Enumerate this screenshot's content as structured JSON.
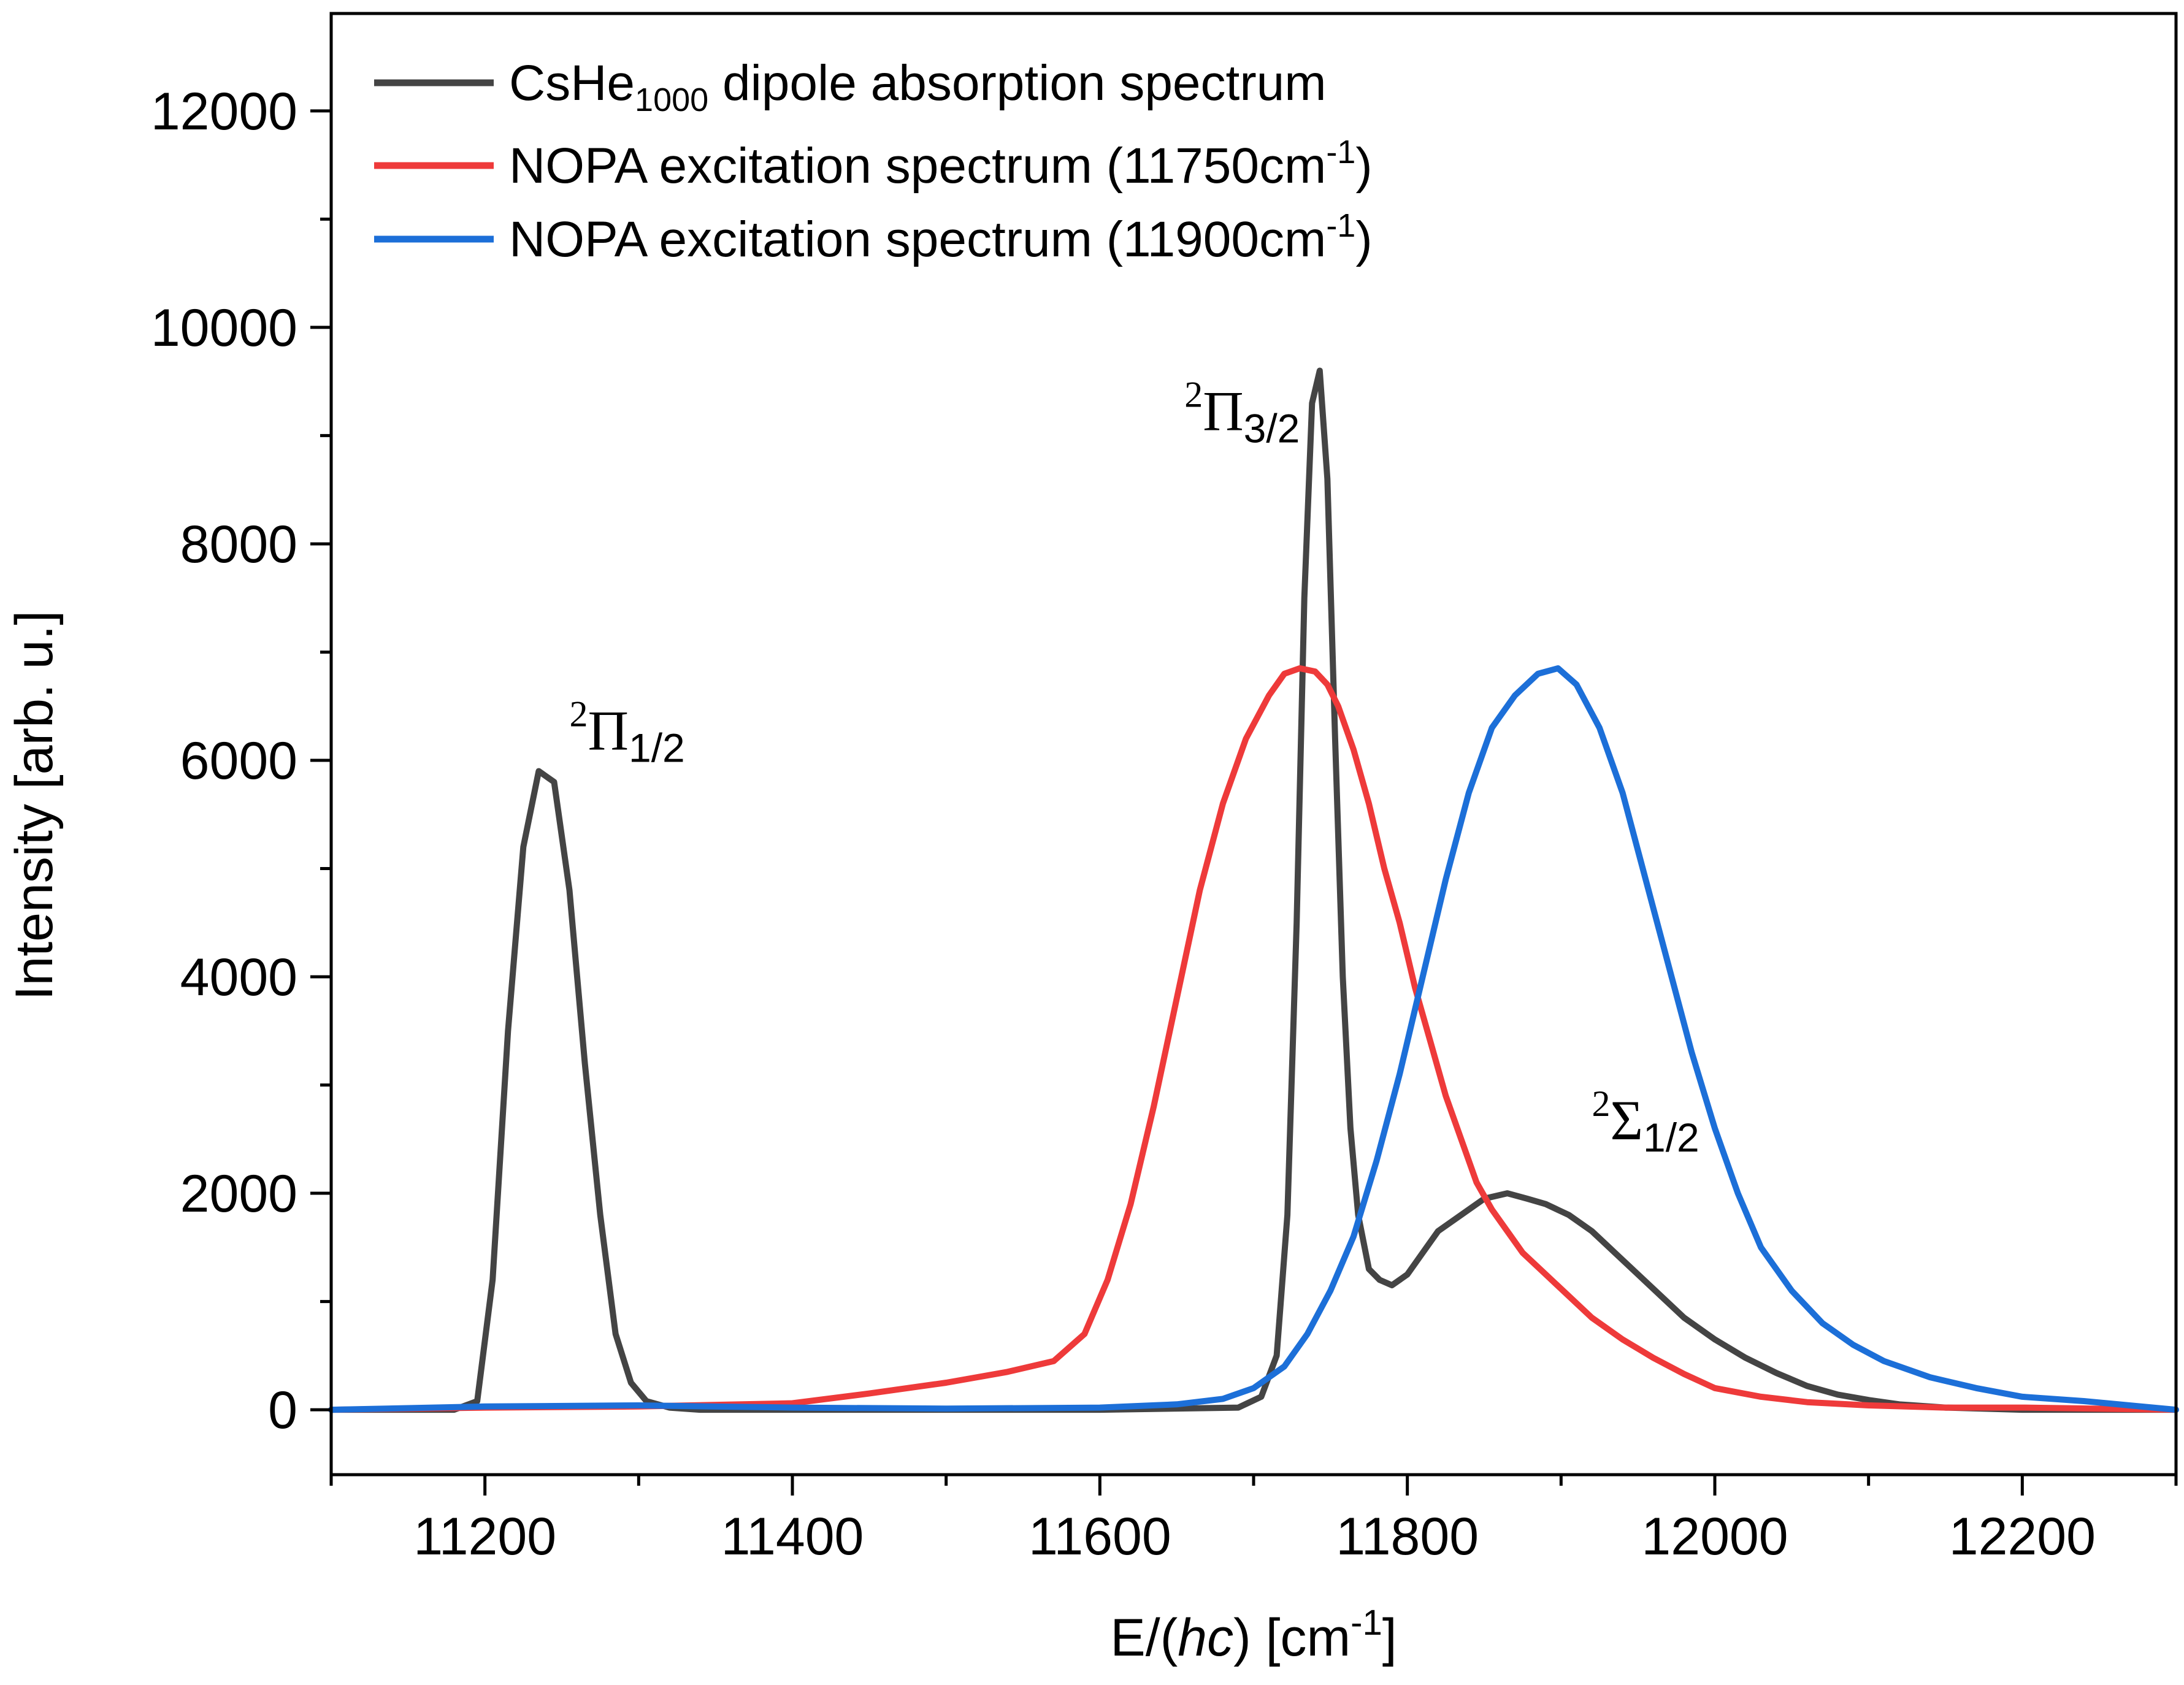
{
  "chart_data": {
    "type": "line",
    "xlabel_main": "E/(",
    "xlabel_italic": "hc",
    "xlabel_unit": ") [cm",
    "xlabel_exp": "-1",
    "xlabel_close": "]",
    "ylabel": "Intensity [arb. u.]",
    "xlim": [
      11100,
      12300
    ],
    "ylim": [
      -600,
      12900
    ],
    "xticks": [
      11200,
      11400,
      11600,
      11800,
      12000,
      12200
    ],
    "yticks": [
      0,
      2000,
      4000,
      6000,
      8000,
      10000,
      12000
    ],
    "legend_position": "top-left",
    "series": [
      {
        "name": "CsHe1000 dipole absorption spectrum",
        "legend_main": "CsHe",
        "legend_sub": "1000",
        "legend_rest": " dipole absorption spectrum",
        "color": "#444444",
        "x": [
          11100,
          11180,
          11195,
          11205,
          11215,
          11225,
          11235,
          11245,
          11255,
          11265,
          11275,
          11285,
          11295,
          11305,
          11320,
          11340,
          11380,
          11600,
          11690,
          11705,
          11715,
          11722,
          11728,
          11733,
          11738,
          11743,
          11748,
          11753,
          11758,
          11763,
          11768,
          11775,
          11782,
          11790,
          11800,
          11810,
          11820,
          11835,
          11850,
          11865,
          11878,
          11890,
          11905,
          11920,
          11935,
          11950,
          11965,
          11980,
          12000,
          12020,
          12040,
          12060,
          12080,
          12100,
          12120,
          12150,
          12200,
          12300
        ],
        "y": [
          0,
          0,
          80,
          1200,
          3500,
          5200,
          5900,
          5800,
          4800,
          3200,
          1800,
          700,
          250,
          80,
          20,
          0,
          0,
          0,
          20,
          120,
          500,
          1800,
          4500,
          7500,
          9300,
          9600,
          8600,
          6200,
          4000,
          2600,
          1800,
          1300,
          1200,
          1150,
          1250,
          1450,
          1650,
          1800,
          1950,
          2000,
          1950,
          1900,
          1800,
          1650,
          1450,
          1250,
          1050,
          850,
          650,
          480,
          340,
          220,
          140,
          90,
          50,
          20,
          0,
          0
        ]
      },
      {
        "name": "NOPA excitation spectrum (11750cm-1)",
        "legend_main": "NOPA excitation spectrum (11750cm",
        "legend_sup": "-1",
        "legend_close": ")",
        "color": "#ee3a3a",
        "x": [
          11100,
          11200,
          11300,
          11400,
          11450,
          11500,
          11540,
          11570,
          11590,
          11605,
          11620,
          11635,
          11650,
          11665,
          11680,
          11695,
          11710,
          11720,
          11730,
          11740,
          11748,
          11755,
          11765,
          11775,
          11785,
          11795,
          11805,
          11815,
          11825,
          11835,
          11845,
          11855,
          11865,
          11875,
          11890,
          11905,
          11920,
          11940,
          11960,
          11980,
          12000,
          12030,
          12060,
          12100,
          12150,
          12200,
          12300
        ],
        "y": [
          0,
          20,
          30,
          60,
          150,
          250,
          350,
          450,
          700,
          1200,
          1900,
          2800,
          3800,
          4800,
          5600,
          6200,
          6600,
          6800,
          6850,
          6820,
          6700,
          6500,
          6100,
          5600,
          5000,
          4500,
          3900,
          3400,
          2900,
          2500,
          2100,
          1850,
          1650,
          1450,
          1250,
          1050,
          850,
          650,
          480,
          330,
          200,
          120,
          70,
          40,
          20,
          20,
          0
        ]
      },
      {
        "name": "NOPA excitation spectrum (11900cm-1)",
        "legend_main": "NOPA excitation spectrum (11900cm",
        "legend_sup": "-1",
        "legend_close": ")",
        "color": "#1c6fd8",
        "x": [
          11100,
          11200,
          11300,
          11400,
          11500,
          11600,
          11650,
          11680,
          11700,
          11720,
          11735,
          11750,
          11765,
          11780,
          11795,
          11810,
          11825,
          11840,
          11855,
          11870,
          11885,
          11898,
          11910,
          11925,
          11940,
          11955,
          11970,
          11985,
          12000,
          12015,
          12030,
          12050,
          12070,
          12090,
          12110,
          12140,
          12170,
          12200,
          12240,
          12300
        ],
        "y": [
          0,
          30,
          40,
          20,
          10,
          20,
          50,
          100,
          200,
          400,
          700,
          1100,
          1600,
          2300,
          3100,
          4000,
          4900,
          5700,
          6300,
          6600,
          6800,
          6850,
          6700,
          6300,
          5700,
          4900,
          4100,
          3300,
          2600,
          2000,
          1500,
          1100,
          800,
          600,
          450,
          300,
          200,
          120,
          80,
          0
        ]
      }
    ],
    "annotations": [
      {
        "sup": "2",
        "symbol": "Π",
        "sub": "1/2",
        "x": 11255,
        "y": 6100
      },
      {
        "sup": "2",
        "symbol": "Π",
        "sub": "3/2",
        "x": 11655,
        "y": 9050
      },
      {
        "sup": "2",
        "symbol": "Σ",
        "sub": "1/2",
        "x": 11920,
        "y": 2500
      }
    ]
  }
}
